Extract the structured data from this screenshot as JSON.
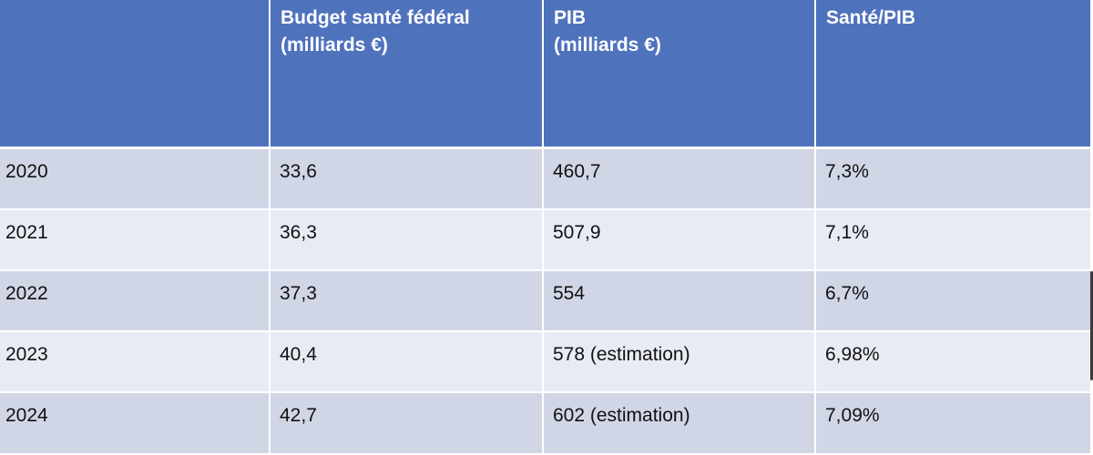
{
  "table": {
    "headers": [
      "",
      "Budget santé fédéral\n(milliards €)",
      "PIB\n(milliards €)",
      "Santé/PIB"
    ],
    "rows": [
      [
        "2020",
        "33,6",
        "460,7",
        "7,3%"
      ],
      [
        "2021",
        "36,3",
        "507,9",
        "7,1%"
      ],
      [
        "2022",
        "37,3",
        "554",
        "6,7%"
      ],
      [
        "2023",
        "40,4",
        "578 (estimation)",
        "6,98%"
      ],
      [
        "2024",
        "42,7",
        "602 (estimation)",
        "7,09%"
      ]
    ]
  },
  "colors": {
    "header_bg": "#4f72bd",
    "row_dark": "#d1d6e7",
    "row_light": "#e9ebf4"
  }
}
